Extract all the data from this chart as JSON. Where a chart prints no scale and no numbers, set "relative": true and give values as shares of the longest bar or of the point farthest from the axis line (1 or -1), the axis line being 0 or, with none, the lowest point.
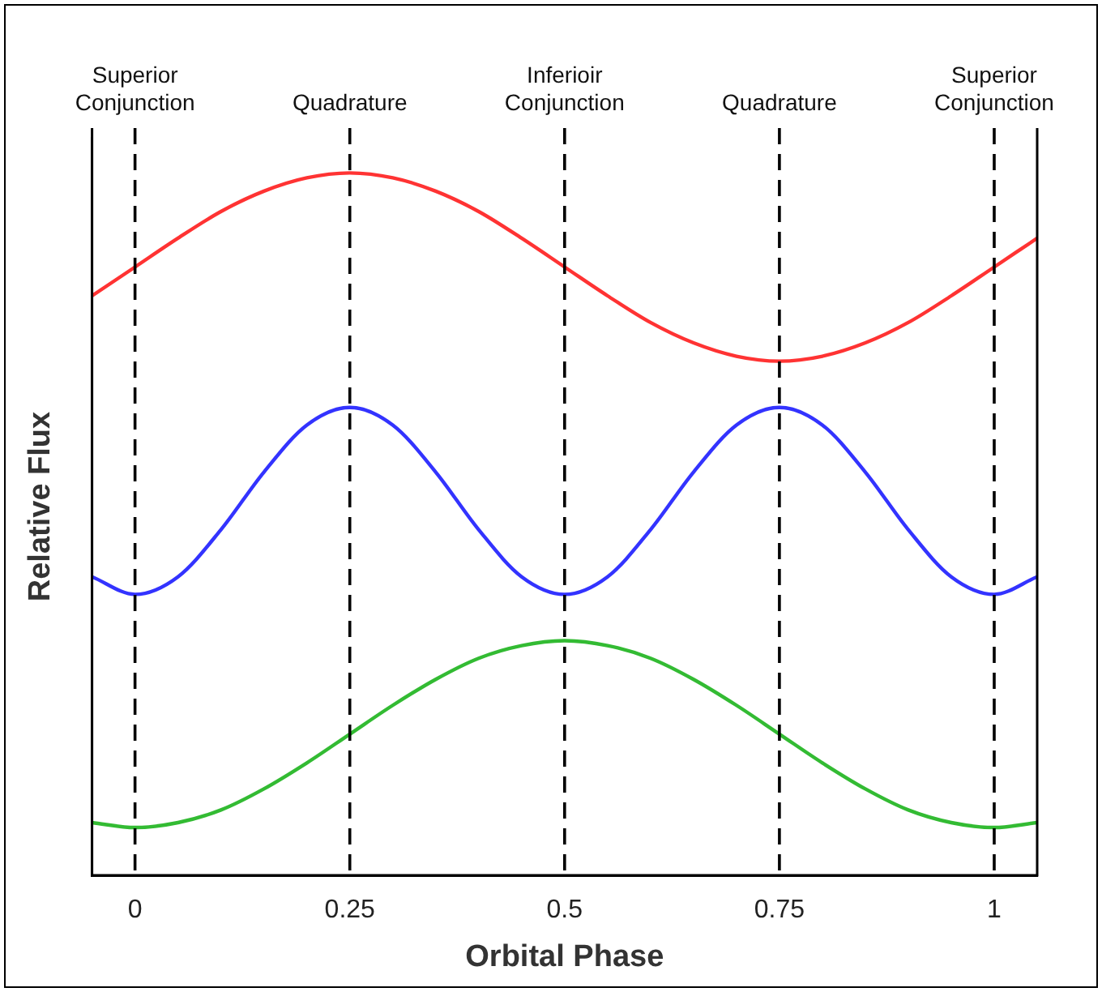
{
  "chart_data": {
    "type": "line",
    "xlabel": "Orbital Phase",
    "ylabel": "Relative Flux",
    "relative": true,
    "xlim": [
      -0.05,
      1.05
    ],
    "xticks": [
      0,
      0.25,
      0.5,
      0.75,
      1
    ],
    "x": [
      -0.05,
      0,
      0.05,
      0.1,
      0.15,
      0.2,
      0.25,
      0.3,
      0.35,
      0.4,
      0.45,
      0.5,
      0.55,
      0.6,
      0.65,
      0.7,
      0.75,
      0.8,
      0.85,
      0.9,
      0.95,
      1,
      1.05
    ],
    "series": [
      {
        "color": "#ff3333",
        "values": [
          0.825,
          0.866,
          0.907,
          0.945,
          0.974,
          0.993,
          1.0,
          0.993,
          0.974,
          0.945,
          0.907,
          0.866,
          0.825,
          0.787,
          0.758,
          0.739,
          0.732,
          0.739,
          0.758,
          0.787,
          0.825,
          0.866,
          0.907
        ]
      },
      {
        "color": "#3333ff",
        "values": [
          0.425,
          0.4,
          0.425,
          0.492,
          0.574,
          0.641,
          0.666,
          0.641,
          0.574,
          0.492,
          0.425,
          0.4,
          0.425,
          0.492,
          0.574,
          0.641,
          0.666,
          0.641,
          0.574,
          0.492,
          0.425,
          0.4,
          0.425
        ]
      },
      {
        "color": "#33bb33",
        "values": [
          0.075,
          0.068,
          0.075,
          0.093,
          0.123,
          0.16,
          0.201,
          0.242,
          0.279,
          0.309,
          0.327,
          0.334,
          0.327,
          0.309,
          0.279,
          0.242,
          0.201,
          0.16,
          0.123,
          0.093,
          0.075,
          0.068,
          0.075
        ]
      }
    ],
    "ref_lines": [
      {
        "axis": "x",
        "value": 0,
        "label": "Superior Conjunction",
        "color": "#000000",
        "line_style": "dashed"
      },
      {
        "axis": "x",
        "value": 0.25,
        "label": "Quadrature",
        "color": "#000000",
        "line_style": "dashed"
      },
      {
        "axis": "x",
        "value": 0.5,
        "label": "Inferioir Conjunction",
        "color": "#000000",
        "line_style": "dashed"
      },
      {
        "axis": "x",
        "value": 0.75,
        "label": "Quadrature",
        "color": "#000000",
        "line_style": "dashed"
      },
      {
        "axis": "x",
        "value": 1,
        "label": "Superior Conjunction",
        "color": "#000000",
        "line_style": "dashed"
      }
    ],
    "grid": false,
    "legend": false,
    "marker": "none",
    "line_style": "solid"
  }
}
